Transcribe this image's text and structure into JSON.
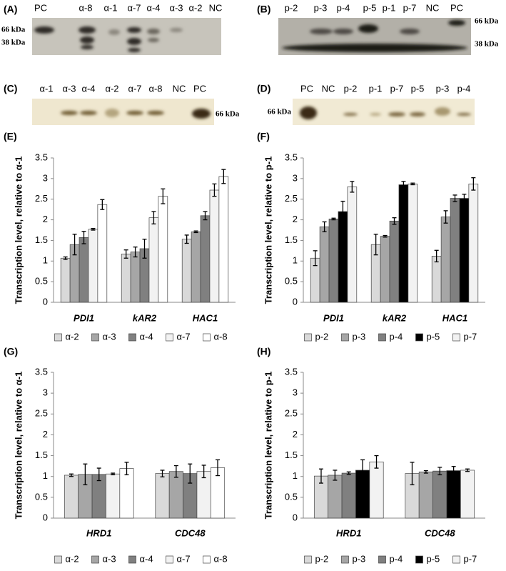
{
  "blots": [
    {
      "panel": "(A)",
      "lanes": [
        "PC",
        "α-8",
        "α-1",
        "α-7",
        "α-4",
        "α-3",
        "α-2",
        "NC"
      ],
      "markers": [
        "66 kDa",
        "38 kDa"
      ]
    },
    {
      "panel": "(B)",
      "lanes": [
        "p-2",
        "p-3",
        "p-4",
        "p-5",
        "p-1",
        "p-7",
        "NC",
        "PC"
      ],
      "markers": [
        "66 kDa",
        "38 kDa"
      ]
    },
    {
      "panel": "(C)",
      "lanes": [
        "α-1",
        "α-3",
        "α-4",
        "α-2",
        "α-7",
        "α-8",
        "NC",
        "PC"
      ],
      "markers": [
        "66 kDa"
      ]
    },
    {
      "panel": "(D)",
      "lanes": [
        "PC",
        "NC",
        "p-2",
        "p-1",
        "p-7",
        "p-5",
        "p-3",
        "p-4"
      ],
      "markers": [
        "66 kDa"
      ]
    }
  ],
  "chart_data": [
    {
      "type": "bar",
      "panel": "(E)",
      "y_label": "Transcription level, relative to α-1",
      "categories": [
        "PDI1",
        "kAR2",
        "HAC1"
      ],
      "ylim": [
        0,
        3.5
      ],
      "yticks": [
        0,
        0.5,
        1,
        1.5,
        2,
        2.5,
        3,
        3.5
      ],
      "series": [
        {
          "name": "α-2",
          "color": "#d9d9d9",
          "values": [
            1.07,
            1.17,
            1.53
          ],
          "errors": [
            0.03,
            0.1,
            0.1
          ]
        },
        {
          "name": "α-3",
          "color": "#a6a6a6",
          "values": [
            1.4,
            1.22,
            1.71
          ],
          "errors": [
            0.25,
            0.12,
            0.02
          ]
        },
        {
          "name": "α-4",
          "color": "#808080",
          "values": [
            1.57,
            1.3,
            2.1
          ],
          "errors": [
            0.15,
            0.23,
            0.1
          ]
        },
        {
          "name": "α-7",
          "color": "#f2f2f2",
          "values": [
            1.77,
            2.05,
            2.72
          ],
          "errors": [
            0.02,
            0.15,
            0.15
          ]
        },
        {
          "name": "α-8",
          "color": "#ffffff",
          "values": [
            2.37,
            2.57,
            3.05
          ],
          "errors": [
            0.12,
            0.18,
            0.17
          ]
        }
      ]
    },
    {
      "type": "bar",
      "panel": "(F)",
      "y_label": "Transcription level, relative to p-1",
      "categories": [
        "PDI1",
        "kAR2",
        "HAC1"
      ],
      "ylim": [
        0,
        3.5
      ],
      "yticks": [
        0,
        0.5,
        1,
        1.5,
        2,
        2.5,
        3,
        3.5
      ],
      "series": [
        {
          "name": "p-2",
          "color": "#d9d9d9",
          "values": [
            1.07,
            1.4,
            1.12
          ],
          "errors": [
            0.18,
            0.25,
            0.14
          ]
        },
        {
          "name": "p-3",
          "color": "#a6a6a6",
          "values": [
            1.83,
            1.6,
            2.07
          ],
          "errors": [
            0.12,
            0.02,
            0.15
          ]
        },
        {
          "name": "p-4",
          "color": "#808080",
          "values": [
            2.02,
            1.97,
            2.52
          ],
          "errors": [
            0.02,
            0.08,
            0.08
          ]
        },
        {
          "name": "p-5",
          "color": "#000000",
          "values": [
            2.2,
            2.85,
            2.52
          ],
          "errors": [
            0.25,
            0.08,
            0.1
          ]
        },
        {
          "name": "p-7",
          "color": "#f2f2f2",
          "values": [
            2.8,
            2.87,
            2.87
          ],
          "errors": [
            0.13,
            0.02,
            0.15
          ]
        }
      ]
    },
    {
      "type": "bar",
      "panel": "(G)",
      "y_label": "Transcription level, relative to α-1",
      "categories": [
        "HRD1",
        "CDC48"
      ],
      "ylim": [
        0,
        3.5
      ],
      "yticks": [
        0,
        0.5,
        1,
        1.5,
        2,
        2.5,
        3,
        3.5
      ],
      "series": [
        {
          "name": "α-2",
          "color": "#d9d9d9",
          "values": [
            1.03,
            1.07
          ],
          "errors": [
            0.03,
            0.08
          ]
        },
        {
          "name": "α-3",
          "color": "#a6a6a6",
          "values": [
            1.05,
            1.12
          ],
          "errors": [
            0.25,
            0.14
          ]
        },
        {
          "name": "α-4",
          "color": "#808080",
          "values": [
            1.05,
            1.07
          ],
          "errors": [
            0.15,
            0.23
          ]
        },
        {
          "name": "α-7",
          "color": "#f2f2f2",
          "values": [
            1.06,
            1.12
          ],
          "errors": [
            0.02,
            0.15
          ]
        },
        {
          "name": "α-8",
          "color": "#ffffff",
          "values": [
            1.19,
            1.21
          ],
          "errors": [
            0.15,
            0.19
          ]
        }
      ]
    },
    {
      "type": "bar",
      "panel": "(H)",
      "y_label": "Transcription level, relative to p-1",
      "categories": [
        "HRD1",
        "CDC48"
      ],
      "ylim": [
        0,
        3.5
      ],
      "yticks": [
        0,
        0.5,
        1,
        1.5,
        2,
        2.5,
        3,
        3.5
      ],
      "series": [
        {
          "name": "p-2",
          "color": "#d9d9d9",
          "values": [
            1.01,
            1.07
          ],
          "errors": [
            0.17,
            0.27
          ]
        },
        {
          "name": "p-3",
          "color": "#a6a6a6",
          "values": [
            1.03,
            1.11
          ],
          "errors": [
            0.12,
            0.03
          ]
        },
        {
          "name": "p-4",
          "color": "#808080",
          "values": [
            1.08,
            1.13
          ],
          "errors": [
            0.03,
            0.09
          ]
        },
        {
          "name": "p-5",
          "color": "#000000",
          "values": [
            1.15,
            1.14
          ],
          "errors": [
            0.25,
            0.1
          ]
        },
        {
          "name": "p-7",
          "color": "#f2f2f2",
          "values": [
            1.35,
            1.15
          ],
          "errors": [
            0.15,
            0.03
          ]
        }
      ]
    }
  ]
}
